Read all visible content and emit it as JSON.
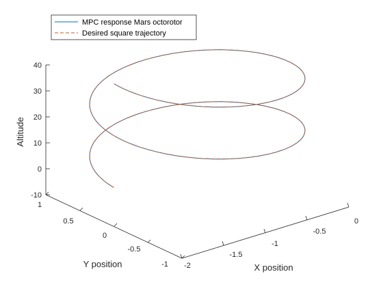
{
  "chart_data": {
    "type": "line",
    "projection": "3d",
    "xlabel": "X position",
    "ylabel": "Y position",
    "zlabel": "Altitude",
    "xlim": [
      -2,
      0
    ],
    "ylim": [
      -1,
      1
    ],
    "zlim": [
      -10,
      40
    ],
    "xticks": [
      "-2",
      "-1.5",
      "-1",
      "-0.5",
      "0"
    ],
    "yticks": [
      "-1",
      "-0.5",
      "0",
      "0.5",
      "1"
    ],
    "zticks": [
      "-10",
      "0",
      "10",
      "20",
      "30",
      "40"
    ],
    "grid": false,
    "legend": {
      "placement": "top-left",
      "entries": [
        "MPC response Mars octorotor",
        "Desired square trajectory"
      ]
    },
    "series": [
      {
        "name": "MPC response Mars octorotor",
        "color": "#0072BD",
        "style": "solid",
        "path": {
          "center_x": -1,
          "center_y": 0,
          "radius": 1,
          "z_start": 5,
          "z_end": 45,
          "turns": 2
        }
      },
      {
        "name": "Desired square trajectory",
        "color": "#D95319",
        "style": "dashed",
        "path": {
          "center_x": -1,
          "center_y": 0,
          "radius": 1,
          "z_start": 5,
          "z_end": 45,
          "turns": 2
        }
      }
    ]
  }
}
